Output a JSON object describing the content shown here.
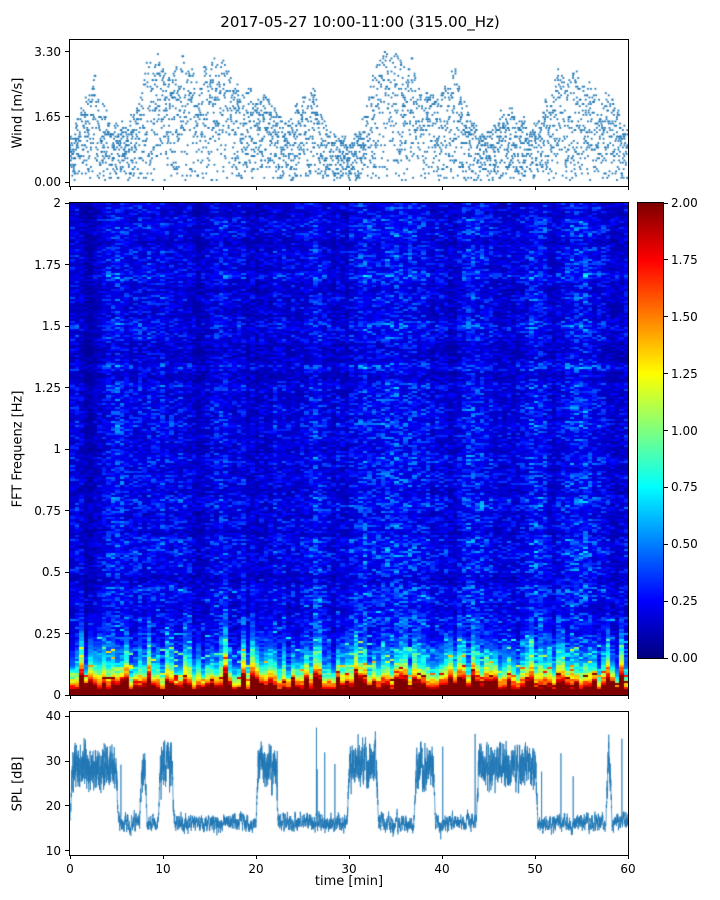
{
  "figure": {
    "title": "2017-05-27 10:00-11:00 (315.00_Hz)",
    "background": "#ffffff"
  },
  "chart_data": [
    {
      "id": "wind",
      "type": "scatter",
      "ylabel": "Wind [m/s]",
      "xlim": [
        0,
        60
      ],
      "ylim": [
        -0.1,
        3.6
      ],
      "yticks": [
        {
          "v": 0.0,
          "label": "0.00"
        },
        {
          "v": 1.65,
          "label": "1.65"
        },
        {
          "v": 3.3,
          "label": "3.30"
        }
      ],
      "marker_color": "#1f77b4",
      "value_quantization_ms": 0.055,
      "baseline_range_ms": [
        0.2,
        1.2
      ],
      "max_value_ms": 3.3,
      "gust_clusters": [
        {
          "t": 2.5,
          "a": 1.0
        },
        {
          "t": 8.8,
          "a": 1.3
        },
        {
          "t": 12.0,
          "a": 1.35
        },
        {
          "t": 15.5,
          "a": 1.3
        },
        {
          "t": 18.0,
          "a": 0.7
        },
        {
          "t": 21.0,
          "a": 0.8
        },
        {
          "t": 25.5,
          "a": 0.9
        },
        {
          "t": 33.8,
          "a": 1.6
        },
        {
          "t": 36.8,
          "a": 1.25
        },
        {
          "t": 41.0,
          "a": 1.15
        },
        {
          "t": 47.0,
          "a": 0.6
        },
        {
          "t": 52.5,
          "a": 1.0
        },
        {
          "t": 55.0,
          "a": 0.9
        },
        {
          "t": 58.0,
          "a": 0.75
        }
      ]
    },
    {
      "id": "spectrogram",
      "type": "heatmap",
      "ylabel": "FFT Frequenz [Hz]",
      "xlim": [
        0,
        60
      ],
      "ylim": [
        0,
        2
      ],
      "clim": [
        0,
        2
      ],
      "colormap": "jet",
      "yticks": [
        {
          "v": 0,
          "label": "0"
        },
        {
          "v": 0.25,
          "label": "0.25"
        },
        {
          "v": 0.5,
          "label": "0.5"
        },
        {
          "v": 0.75,
          "label": "0.75"
        },
        {
          "v": 1,
          "label": "1"
        },
        {
          "v": 1.25,
          "label": "1.25"
        },
        {
          "v": 1.5,
          "label": "1.5"
        },
        {
          "v": 1.75,
          "label": "1.75"
        },
        {
          "v": 2,
          "label": "2"
        }
      ],
      "colorbar_ticks": [
        {
          "v": 2.0,
          "label": "2.00"
        },
        {
          "v": 1.75,
          "label": "1.75"
        },
        {
          "v": 1.5,
          "label": "1.50"
        },
        {
          "v": 1.25,
          "label": "1.25"
        },
        {
          "v": 1.0,
          "label": "1.00"
        },
        {
          "v": 0.75,
          "label": "0.75"
        },
        {
          "v": 0.5,
          "label": "0.50"
        },
        {
          "v": 0.25,
          "label": "0.25"
        },
        {
          "v": 0.0,
          "label": "0.00"
        }
      ],
      "features": {
        "saturated_band_hz": [
          0,
          0.04
        ],
        "energetic_plume_band_hz": [
          0,
          0.3
        ],
        "background_value_range": [
          0.1,
          0.5
        ],
        "structure": "dark-blue background with vertical column streaks; intense red/yellow band at lowest frequencies with intermittent cyan-green plumes up to ~0.3 Hz"
      }
    },
    {
      "id": "spl",
      "type": "line",
      "ylabel": "SPL [dB]",
      "xlabel": "time [min]",
      "xlim": [
        0,
        60
      ],
      "ylim": [
        9,
        41
      ],
      "yticks": [
        {
          "v": 10,
          "label": "10"
        },
        {
          "v": 20,
          "label": "20"
        },
        {
          "v": 30,
          "label": "30"
        },
        {
          "v": 40,
          "label": "40"
        }
      ],
      "xticks": [
        {
          "v": 0,
          "label": "0"
        },
        {
          "v": 10,
          "label": "10"
        },
        {
          "v": 20,
          "label": "20"
        },
        {
          "v": 30,
          "label": "30"
        },
        {
          "v": 40,
          "label": "40"
        },
        {
          "v": 50,
          "label": "50"
        },
        {
          "v": 60,
          "label": "60"
        }
      ],
      "line_color": "#1f77b4",
      "baseline_db_range": [
        14,
        20
      ],
      "burst_db_range": [
        25,
        38
      ],
      "high_level_intervals_min": [
        [
          0,
          5.2
        ],
        [
          7.5,
          8.3
        ],
        [
          9.5,
          11.2
        ],
        [
          20.0,
          22.4
        ],
        [
          29.8,
          33.2
        ],
        [
          37.0,
          39.3
        ],
        [
          43.7,
          50.3
        ],
        [
          57.6,
          58.3
        ]
      ]
    }
  ]
}
